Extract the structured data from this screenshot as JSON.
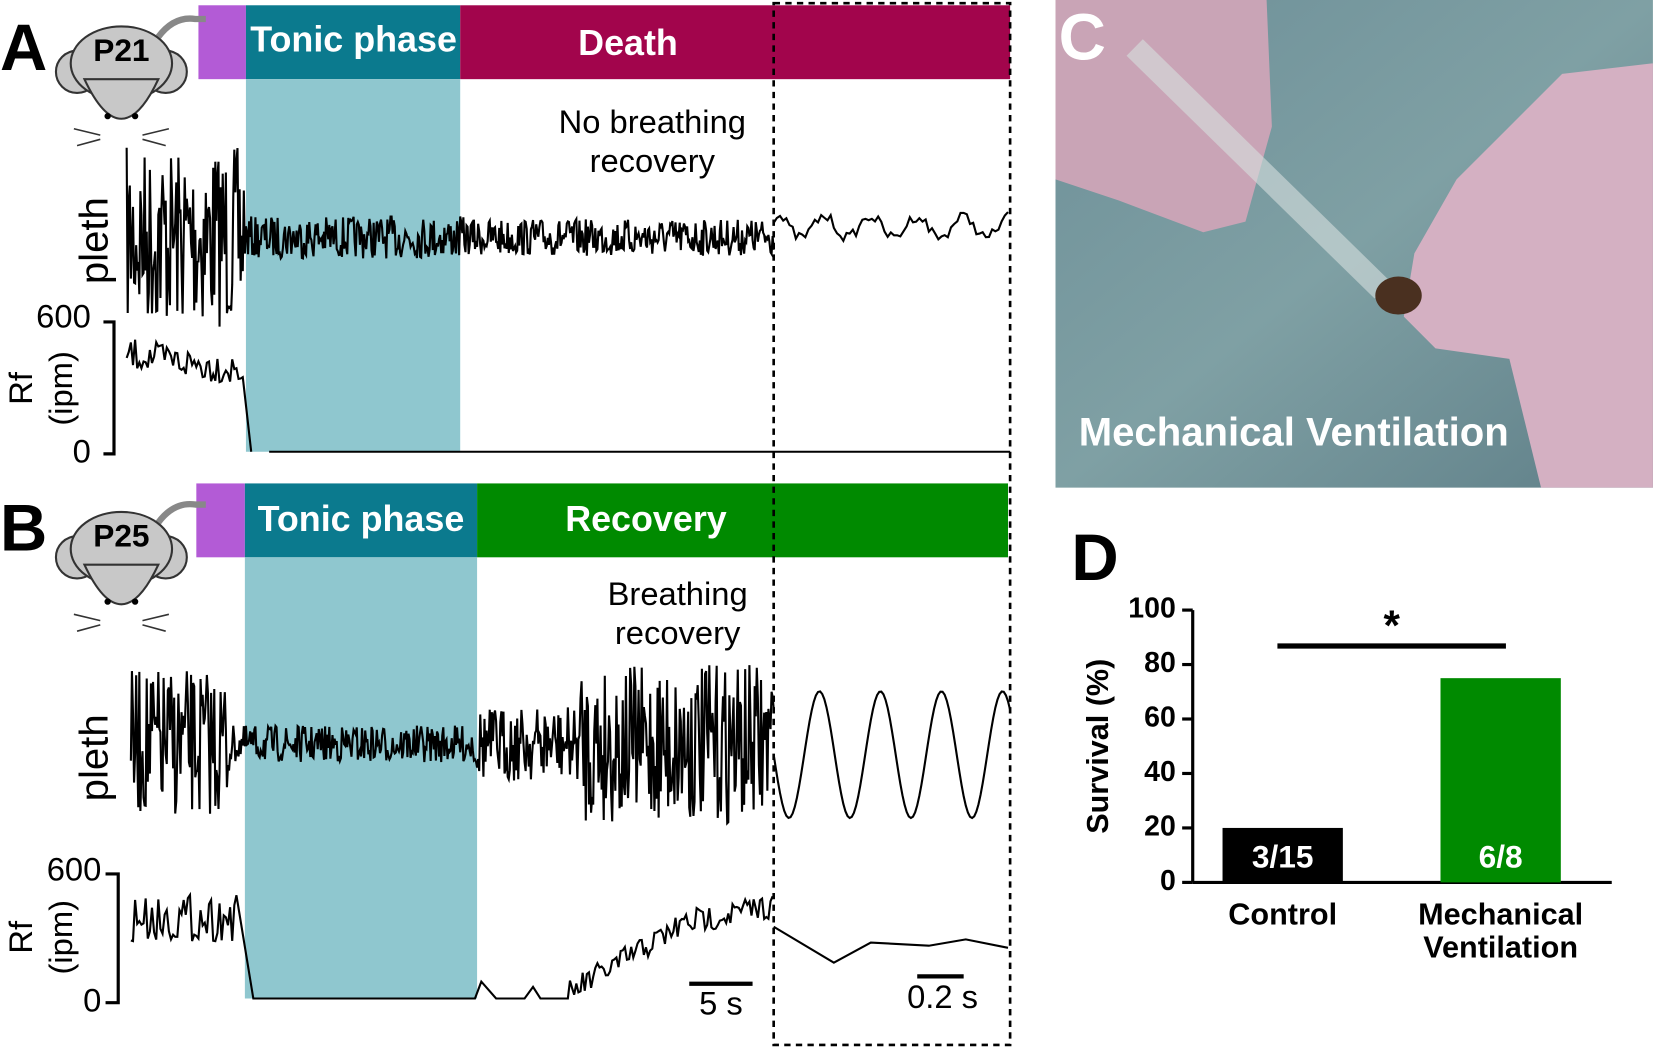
{
  "panel_a": {
    "letter": "A",
    "age": "P21",
    "phase": "Tonic phase",
    "outcome": "Death",
    "note": [
      "No breathing",
      "recovery"
    ],
    "trace_label": "pleth",
    "rate_label": [
      "Rf",
      "(ipm)"
    ],
    "rate_ticks": [
      "600",
      "0"
    ]
  },
  "panel_b": {
    "letter": "B",
    "age": "P25",
    "phase": "Tonic phase",
    "outcome": "Recovery",
    "note": [
      "Breathing",
      "recovery"
    ],
    "trace_label": "pleth",
    "rate_label": [
      "Rf",
      "(ipm)"
    ],
    "rate_ticks": [
      "600",
      "0"
    ],
    "scale_bars": [
      "5 s",
      "0.2 s"
    ]
  },
  "panel_c": {
    "letter": "C",
    "caption": "Mechanical Ventilation"
  },
  "chart_data": {
    "type": "bar",
    "label": "D",
    "ylabel": "Survival (%)",
    "categories": [
      "Control",
      "Mechanical Ventilation"
    ],
    "series": [
      {
        "name": null,
        "colors": [
          "#000000",
          "#008a00"
        ],
        "values": [
          20,
          75
        ],
        "value_labels": [
          "3/15",
          "6/8"
        ]
      }
    ],
    "ylim": [
      0,
      100
    ],
    "yticks": [
      0,
      20,
      40,
      60,
      80,
      100
    ],
    "annotation": "*"
  }
}
